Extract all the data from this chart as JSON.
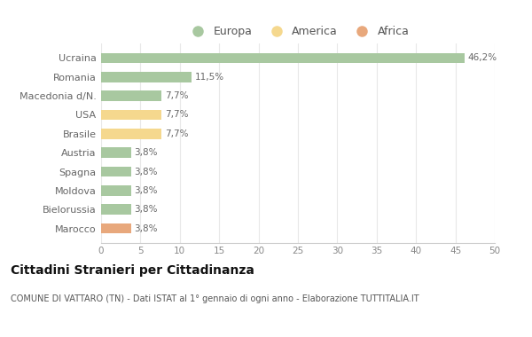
{
  "categories": [
    "Marocco",
    "Bielorussia",
    "Moldova",
    "Spagna",
    "Austria",
    "Brasile",
    "USA",
    "Macedonia d/N.",
    "Romania",
    "Ucraina"
  ],
  "values": [
    3.8,
    3.8,
    3.8,
    3.8,
    3.8,
    7.7,
    7.7,
    7.7,
    11.5,
    46.2
  ],
  "bar_colors": [
    "#e8a87c",
    "#a8c8a0",
    "#a8c8a0",
    "#a8c8a0",
    "#a8c8a0",
    "#f5d88e",
    "#f5d88e",
    "#a8c8a0",
    "#a8c8a0",
    "#a8c8a0"
  ],
  "labels": [
    "3,8%",
    "3,8%",
    "3,8%",
    "3,8%",
    "3,8%",
    "7,7%",
    "7,7%",
    "7,7%",
    "11,5%",
    "46,2%"
  ],
  "legend_labels": [
    "Europa",
    "America",
    "Africa"
  ],
  "legend_colors": [
    "#a8c8a0",
    "#f5d88e",
    "#e8a87c"
  ],
  "title": "Cittadini Stranieri per Cittadinanza",
  "subtitle": "COMUNE DI VATTARO (TN) - Dati ISTAT al 1° gennaio di ogni anno - Elaborazione TUTTITALIA.IT",
  "xlim": [
    0,
    50
  ],
  "xticks": [
    0,
    5,
    10,
    15,
    20,
    25,
    30,
    35,
    40,
    45,
    50
  ],
  "background_color": "#ffffff",
  "grid_color": "#e8e8e8",
  "bar_height": 0.55,
  "label_color": "#666666",
  "tick_color": "#888888",
  "title_color": "#111111",
  "subtitle_color": "#555555"
}
